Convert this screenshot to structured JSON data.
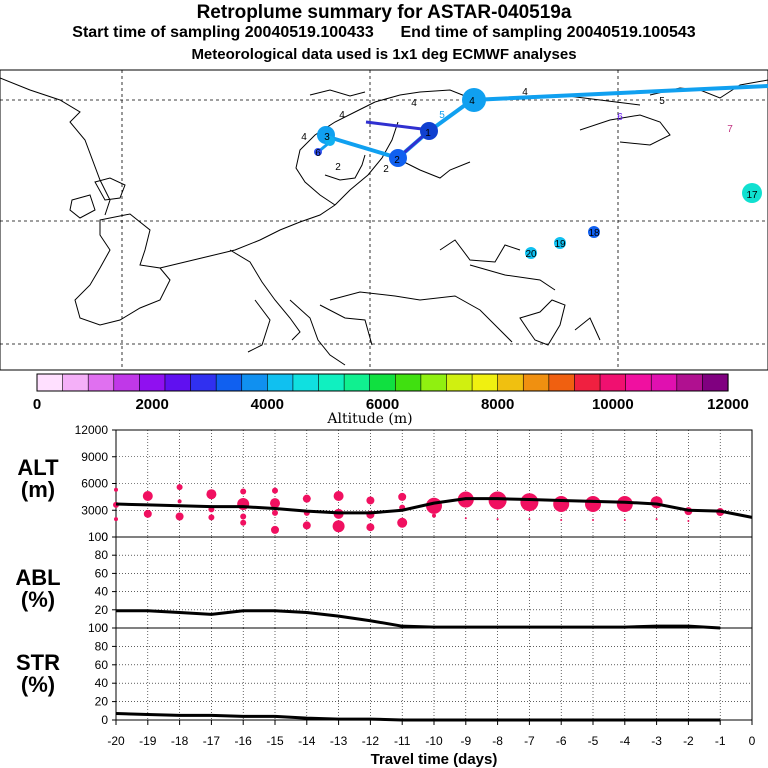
{
  "header": {
    "title": "Retroplume summary for ASTAR-040519a",
    "line2": "Start time of sampling 20040519.100433      End time of sampling 20040519.100543",
    "line3": "Meteorological data used is 1x1 deg ECMWF analyses"
  },
  "colors": {
    "altitude_scale": [
      "#ffe0ff",
      "#f4b0f8",
      "#e070f0",
      "#c038e8",
      "#9010f0",
      "#6010f0",
      "#3030f0",
      "#1060f0",
      "#1090f0",
      "#10c0f0",
      "#10e0e0",
      "#10f0c0",
      "#10f090",
      "#10e040",
      "#40e010",
      "#90f010",
      "#d0f010",
      "#f0f010",
      "#f0c010",
      "#f09010",
      "#f06010",
      "#f02040",
      "#f01070",
      "#f010a0",
      "#e010b0",
      "#b01090",
      "#800080"
    ],
    "marker": "#f01060",
    "line": "#000000"
  },
  "colorbar": {
    "label": "Altitude (m)",
    "ticks": [
      "0",
      "2000",
      "4000",
      "6000",
      "8000",
      "10000",
      "12000"
    ]
  },
  "map": {
    "labels": [
      {
        "text": "1",
        "color": "#1040f0"
      },
      {
        "text": "2",
        "color": "#1060f0"
      },
      {
        "text": "3",
        "color": "#10a0f0"
      },
      {
        "text": "4",
        "color": "#10b0f0"
      },
      {
        "text": "5",
        "color": "#10a0f0"
      },
      {
        "text": "6",
        "color": "#6010f0"
      },
      {
        "text": "7",
        "color": "#c03080"
      },
      {
        "text": "17",
        "color": "#10e0d0"
      },
      {
        "text": "18",
        "color": "#1060f0"
      },
      {
        "text": "19",
        "color": "#10c0f0"
      },
      {
        "text": "20",
        "color": "#10c0f0"
      }
    ]
  },
  "chart_data": [
    {
      "type": "line",
      "panel": "ALT",
      "ylabel": "ALT\n(m)",
      "ylabel_lines": [
        "ALT",
        "(m)"
      ],
      "ylim": [
        0,
        12000
      ],
      "yticks": [
        "12000",
        "9000",
        "6000",
        "3000",
        "0"
      ],
      "xlim": [
        -20,
        0
      ],
      "x": [
        -20,
        -19,
        -18,
        -17,
        -16,
        -15,
        -14,
        -13,
        -12,
        -11,
        -10,
        -9,
        -8,
        -7,
        -6,
        -5,
        -4,
        -3,
        -2,
        -1,
        0
      ],
      "series": [
        {
          "name": "mean altitude",
          "values": [
            3700,
            3600,
            3500,
            3400,
            3400,
            3200,
            2900,
            2700,
            2700,
            3000,
            3800,
            4300,
            4300,
            4200,
            4100,
            4000,
            3900,
            3700,
            3000,
            2900,
            2200
          ]
        }
      ],
      "scatter": [
        {
          "x": -20,
          "y": 5300,
          "r": 2
        },
        {
          "x": -20,
          "y": 3600,
          "r": 3
        },
        {
          "x": -20,
          "y": 2000,
          "r": 2
        },
        {
          "x": -19,
          "y": 4600,
          "r": 5
        },
        {
          "x": -19,
          "y": 2600,
          "r": 4
        },
        {
          "x": -18,
          "y": 5600,
          "r": 3
        },
        {
          "x": -18,
          "y": 4000,
          "r": 2
        },
        {
          "x": -18,
          "y": 2300,
          "r": 4
        },
        {
          "x": -17,
          "y": 4800,
          "r": 5
        },
        {
          "x": -17,
          "y": 3100,
          "r": 3
        },
        {
          "x": -17,
          "y": 2200,
          "r": 3
        },
        {
          "x": -16,
          "y": 5100,
          "r": 3
        },
        {
          "x": -16,
          "y": 3700,
          "r": 6
        },
        {
          "x": -16,
          "y": 2300,
          "r": 3
        },
        {
          "x": -16,
          "y": 1600,
          "r": 3
        },
        {
          "x": -15,
          "y": 5200,
          "r": 3
        },
        {
          "x": -15,
          "y": 3800,
          "r": 5
        },
        {
          "x": -15,
          "y": 2700,
          "r": 3
        },
        {
          "x": -15,
          "y": 800,
          "r": 4
        },
        {
          "x": -14,
          "y": 4300,
          "r": 4
        },
        {
          "x": -14,
          "y": 2700,
          "r": 3
        },
        {
          "x": -14,
          "y": 1300,
          "r": 4
        },
        {
          "x": -13,
          "y": 4600,
          "r": 5
        },
        {
          "x": -13,
          "y": 2600,
          "r": 5
        },
        {
          "x": -13,
          "y": 1200,
          "r": 6
        },
        {
          "x": -12,
          "y": 4100,
          "r": 4
        },
        {
          "x": -12,
          "y": 2500,
          "r": 4
        },
        {
          "x": -12,
          "y": 1100,
          "r": 4
        },
        {
          "x": -11,
          "y": 4500,
          "r": 4
        },
        {
          "x": -11,
          "y": 3300,
          "r": 3
        },
        {
          "x": -11,
          "y": 1600,
          "r": 5
        },
        {
          "x": -10,
          "y": 3500,
          "r": 8
        },
        {
          "x": -10,
          "y": 2400,
          "r": 2
        },
        {
          "x": -9,
          "y": 4200,
          "r": 8
        },
        {
          "x": -9,
          "y": 2100,
          "r": 1
        },
        {
          "x": -8,
          "y": 4100,
          "r": 9
        },
        {
          "x": -8,
          "y": 2000,
          "r": 1
        },
        {
          "x": -7,
          "y": 3900,
          "r": 9
        },
        {
          "x": -7,
          "y": 2000,
          "r": 1
        },
        {
          "x": -6,
          "y": 3700,
          "r": 8
        },
        {
          "x": -6,
          "y": 1900,
          "r": 1
        },
        {
          "x": -5,
          "y": 3700,
          "r": 8
        },
        {
          "x": -5,
          "y": 1900,
          "r": 1
        },
        {
          "x": -4,
          "y": 3700,
          "r": 8
        },
        {
          "x": -4,
          "y": 1900,
          "r": 1
        },
        {
          "x": -3,
          "y": 3900,
          "r": 6
        },
        {
          "x": -3,
          "y": 2000,
          "r": 1
        },
        {
          "x": -2,
          "y": 2900,
          "r": 4
        },
        {
          "x": -2,
          "y": 1800,
          "r": 1
        },
        {
          "x": -1,
          "y": 2800,
          "r": 4
        }
      ]
    },
    {
      "type": "line",
      "panel": "ABL",
      "ylabel_lines": [
        "ABL",
        "(%)"
      ],
      "ylim": [
        0,
        100
      ],
      "yticks": [
        "100",
        "80",
        "60",
        "40",
        "20",
        "0"
      ],
      "x": [
        -20,
        -19,
        -18,
        -17,
        -16,
        -15,
        -14,
        -13,
        -12,
        -11,
        -10,
        -9,
        -8,
        -7,
        -6,
        -5,
        -4,
        -3,
        -2,
        -1
      ],
      "series": [
        {
          "name": "ABL fraction",
          "values": [
            19,
            19,
            17,
            15,
            19,
            19,
            17,
            13,
            8,
            2,
            1,
            1,
            1,
            1,
            1,
            1,
            1,
            2,
            2,
            0
          ]
        }
      ]
    },
    {
      "type": "line",
      "panel": "STR",
      "ylabel_lines": [
        "STR",
        "(%)"
      ],
      "ylim": [
        0,
        100
      ],
      "yticks": [
        "100",
        "80",
        "60",
        "40",
        "20",
        "0"
      ],
      "x": [
        -20,
        -19,
        -18,
        -17,
        -16,
        -15,
        -14,
        -13,
        -12,
        -11,
        -10,
        -9,
        -8,
        -7,
        -6,
        -5,
        -4,
        -3,
        -2,
        -1
      ],
      "series": [
        {
          "name": "stratospheric fraction",
          "values": [
            7,
            6,
            5,
            5,
            4,
            4,
            2,
            1,
            1,
            0,
            0,
            0,
            0,
            0,
            0,
            0,
            0,
            0,
            0,
            0
          ]
        }
      ]
    },
    {
      "type": "axis",
      "xlabel": "Travel time (days)",
      "xticks": [
        "-20",
        "-19",
        "-18",
        "-17",
        "-16",
        "-15",
        "-14",
        "-13",
        "-12",
        "-11",
        "-10",
        "-9",
        "-8",
        "-7",
        "-6",
        "-5",
        "-4",
        "-3",
        "-2",
        "-1",
        "0"
      ]
    }
  ]
}
